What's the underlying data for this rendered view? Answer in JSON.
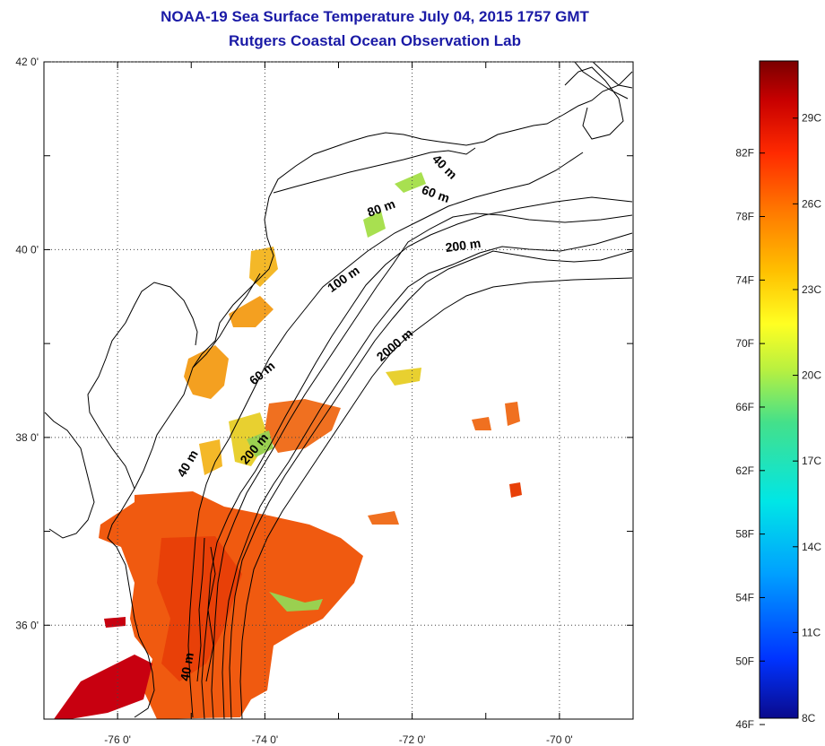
{
  "title": "NOAA-19 Sea Surface Temperature July 04, 2015 1757 GMT",
  "subtitle": "Rutgers Coastal Ocean Observation Lab",
  "map": {
    "lon_range": [
      -77,
      -69
    ],
    "lat_range": [
      35,
      42
    ],
    "lon_ticks": [
      {
        "value": -76,
        "label": "-76 0'"
      },
      {
        "value": -74,
        "label": "-74 0'"
      },
      {
        "value": -72,
        "label": "-72 0'"
      },
      {
        "value": -70,
        "label": "-70 0'"
      }
    ],
    "lat_ticks": [
      {
        "value": 42,
        "label": "42 0'"
      },
      {
        "value": 40,
        "label": "40 0'"
      },
      {
        "value": 38,
        "label": "38 0'"
      },
      {
        "value": 36,
        "label": "36 0'"
      }
    ],
    "isobath_labels": [
      {
        "text": "40 m",
        "lon": -71.6,
        "lat": 40.85,
        "rot": 45
      },
      {
        "text": "60 m",
        "lon": -71.7,
        "lat": 40.55,
        "rot": 20
      },
      {
        "text": "80 m",
        "lon": -72.4,
        "lat": 40.4,
        "rot": -20
      },
      {
        "text": "200 m",
        "lon": -71.3,
        "lat": 40.0,
        "rot": -8
      },
      {
        "text": "100 m",
        "lon": -72.9,
        "lat": 39.65,
        "rot": -35
      },
      {
        "text": "2000 m",
        "lon": -72.2,
        "lat": 38.95,
        "rot": -40
      },
      {
        "text": "60 m",
        "lon": -74.0,
        "lat": 38.65,
        "rot": -40
      },
      {
        "text": "200 m",
        "lon": -74.1,
        "lat": 37.85,
        "rot": -50
      },
      {
        "text": "40 m",
        "lon": -75.0,
        "lat": 37.7,
        "rot": -60
      },
      {
        "text": "40 m",
        "lon": -75.0,
        "lat": 35.55,
        "rot": -80
      }
    ]
  },
  "colorbar": {
    "min_c": 8,
    "max_c": 31,
    "colors": [
      "#0a0a8c",
      "#0033ff",
      "#00a0ff",
      "#00e6e6",
      "#44e08a",
      "#b8f040",
      "#ffff22",
      "#ffc000",
      "#ff7a00",
      "#ff2a00",
      "#c80000",
      "#7a0000"
    ],
    "f_labels": [
      "82F",
      "78F",
      "74F",
      "70F",
      "66F",
      "62F",
      "58F",
      "54F",
      "50F",
      "46F"
    ],
    "c_labels": [
      "29C",
      "26C",
      "23C",
      "20C",
      "17C",
      "14C",
      "11C",
      "8C"
    ]
  },
  "sst_patches_note_free": true
}
